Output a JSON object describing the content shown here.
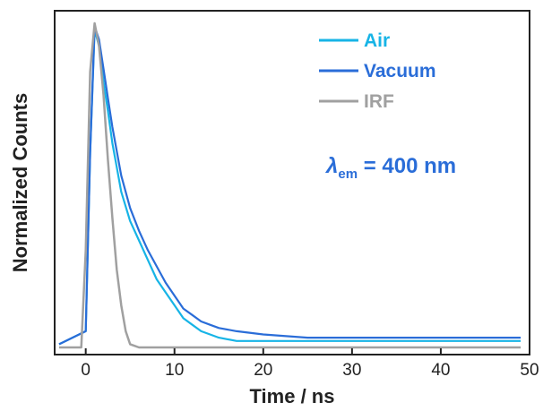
{
  "chart_data": {
    "type": "line",
    "xlabel": "Time / ns",
    "ylabel": "Normalized Counts",
    "xlim": [
      -3.5,
      50
    ],
    "ylim": [
      0,
      1.0
    ],
    "xticks": [
      0,
      10,
      20,
      30,
      40,
      50
    ],
    "y_tick_labels_shown": false,
    "grid": false,
    "legend_position": "top-right",
    "annotation": {
      "symbol": "λ",
      "subscript": "em",
      "text": " = 400 nm",
      "color": "#2a6dd8"
    },
    "series": [
      {
        "name": "Air",
        "color": "#17b4e6",
        "x": [
          -3,
          0,
          0.5,
          1,
          1.5,
          2,
          2.5,
          3,
          4,
          5,
          6,
          7,
          8,
          9,
          10,
          11,
          12,
          13,
          14,
          15,
          17,
          20,
          25,
          30,
          35,
          40,
          45,
          49
        ],
        "values": [
          0.01,
          0.05,
          0.6,
          0.98,
          0.93,
          0.82,
          0.73,
          0.63,
          0.48,
          0.39,
          0.33,
          0.27,
          0.21,
          0.17,
          0.13,
          0.09,
          0.07,
          0.05,
          0.04,
          0.03,
          0.02,
          0.02,
          0.02,
          0.02,
          0.02,
          0.02,
          0.02,
          0.02
        ]
      },
      {
        "name": "Vacuum",
        "color": "#2a6dd8",
        "x": [
          -3,
          0,
          0.5,
          1,
          1.5,
          2,
          2.5,
          3,
          4,
          5,
          6,
          7,
          8,
          9,
          10,
          11,
          12,
          13,
          14,
          15,
          17,
          20,
          25,
          30,
          35,
          40,
          45,
          49
        ],
        "values": [
          0.01,
          0.05,
          0.6,
          0.99,
          0.95,
          0.86,
          0.77,
          0.68,
          0.53,
          0.43,
          0.36,
          0.3,
          0.25,
          0.2,
          0.16,
          0.12,
          0.1,
          0.08,
          0.07,
          0.06,
          0.05,
          0.04,
          0.03,
          0.03,
          0.03,
          0.03,
          0.03,
          0.03
        ]
      },
      {
        "name": "IRF",
        "color": "#a0a0a0",
        "x": [
          -3,
          -0.5,
          0,
          0.5,
          1,
          1.5,
          2,
          2.5,
          3,
          3.5,
          4,
          4.5,
          5,
          6,
          10,
          20,
          30,
          40,
          49
        ],
        "values": [
          0,
          0,
          0.3,
          0.85,
          1.0,
          0.93,
          0.78,
          0.58,
          0.4,
          0.24,
          0.13,
          0.05,
          0.01,
          0,
          0,
          0,
          0,
          0,
          0
        ]
      }
    ]
  }
}
